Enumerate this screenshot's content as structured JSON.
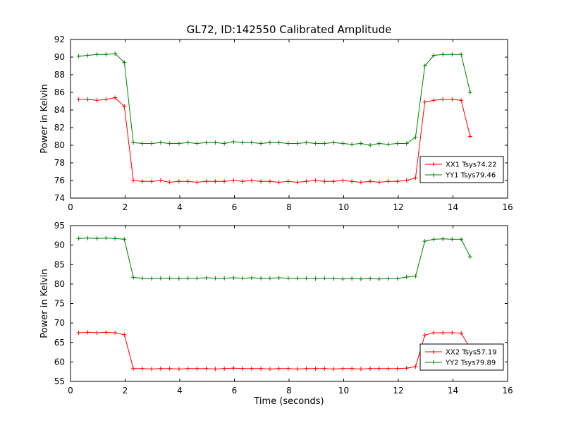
{
  "figure_title": "GL72, ID:142550 Calibrated Amplitude",
  "colors": {
    "red": "#ff0000",
    "green": "#008000",
    "axes": "#000000",
    "background": "#ffffff"
  },
  "chart_data": [
    {
      "type": "line",
      "title": "GL72, ID:142550 Calibrated Amplitude",
      "xlabel": "",
      "ylabel": "Power in Kelvin",
      "xlim": [
        0,
        16
      ],
      "ylim": [
        74,
        92
      ],
      "xticks": [
        0,
        2,
        4,
        6,
        8,
        10,
        12,
        14,
        16
      ],
      "yticks": [
        74,
        76,
        78,
        80,
        82,
        84,
        86,
        88,
        90,
        92
      ],
      "grid": false,
      "legend_position": "lower right",
      "x": [
        0.3,
        0.63,
        0.97,
        1.3,
        1.63,
        1.97,
        2.3,
        2.63,
        2.97,
        3.3,
        3.63,
        3.97,
        4.3,
        4.63,
        4.97,
        5.3,
        5.63,
        5.97,
        6.3,
        6.63,
        6.97,
        7.3,
        7.63,
        7.97,
        8.3,
        8.63,
        8.97,
        9.3,
        9.63,
        9.97,
        10.3,
        10.63,
        10.97,
        11.3,
        11.63,
        11.97,
        12.3,
        12.63,
        12.97,
        13.3,
        13.63,
        13.97,
        14.3,
        14.63
      ],
      "series": [
        {
          "name": "XX1 Tsys74.22",
          "color": "#ff0000",
          "marker": "+",
          "y": [
            85.2,
            85.2,
            85.1,
            85.2,
            85.4,
            84.4,
            76.0,
            75.9,
            75.9,
            76.0,
            75.8,
            75.9,
            75.9,
            75.8,
            75.9,
            75.9,
            75.9,
            76.0,
            75.9,
            76.0,
            75.9,
            75.9,
            75.8,
            75.9,
            75.8,
            75.9,
            76.0,
            75.9,
            75.9,
            76.0,
            75.9,
            75.8,
            75.9,
            75.8,
            75.9,
            75.9,
            76.0,
            76.3,
            84.9,
            85.1,
            85.2,
            85.2,
            85.1,
            81.0
          ]
        },
        {
          "name": "YY1 Tsys79.46",
          "color": "#008000",
          "marker": "+",
          "y": [
            90.1,
            90.2,
            90.3,
            90.3,
            90.4,
            89.4,
            80.3,
            80.2,
            80.2,
            80.3,
            80.2,
            80.2,
            80.3,
            80.2,
            80.3,
            80.3,
            80.2,
            80.4,
            80.3,
            80.3,
            80.2,
            80.3,
            80.3,
            80.2,
            80.2,
            80.3,
            80.2,
            80.2,
            80.3,
            80.2,
            80.1,
            80.2,
            80.0,
            80.2,
            80.1,
            80.2,
            80.2,
            80.9,
            89.0,
            90.2,
            90.3,
            90.3,
            90.3,
            86.0
          ]
        }
      ]
    },
    {
      "type": "line",
      "title": "",
      "xlabel": "Time (seconds)",
      "ylabel": "Power in Kelvin",
      "xlim": [
        0,
        16
      ],
      "ylim": [
        55,
        95
      ],
      "xticks": [
        0,
        2,
        4,
        6,
        8,
        10,
        12,
        14,
        16
      ],
      "yticks": [
        55,
        60,
        65,
        70,
        75,
        80,
        85,
        90,
        95
      ],
      "grid": false,
      "legend_position": "lower right",
      "x": [
        0.3,
        0.63,
        0.97,
        1.3,
        1.63,
        1.97,
        2.3,
        2.63,
        2.97,
        3.3,
        3.63,
        3.97,
        4.3,
        4.63,
        4.97,
        5.3,
        5.63,
        5.97,
        6.3,
        6.63,
        6.97,
        7.3,
        7.63,
        7.97,
        8.3,
        8.63,
        8.97,
        9.3,
        9.63,
        9.97,
        10.3,
        10.63,
        10.97,
        11.3,
        11.63,
        11.97,
        12.3,
        12.63,
        12.97,
        13.3,
        13.63,
        13.97,
        14.3,
        14.63
      ],
      "series": [
        {
          "name": "XX2 Tsys57.19",
          "color": "#ff0000",
          "marker": "+",
          "y": [
            67.5,
            67.6,
            67.5,
            67.6,
            67.5,
            67.0,
            58.3,
            58.3,
            58.2,
            58.3,
            58.3,
            58.2,
            58.3,
            58.3,
            58.3,
            58.2,
            58.3,
            58.4,
            58.3,
            58.3,
            58.3,
            58.2,
            58.3,
            58.3,
            58.2,
            58.3,
            58.3,
            58.3,
            58.2,
            58.3,
            58.3,
            58.2,
            58.3,
            58.3,
            58.3,
            58.3,
            58.4,
            58.8,
            66.9,
            67.5,
            67.5,
            67.5,
            67.4,
            63.5
          ]
        },
        {
          "name": "YY2 Tsys79.89",
          "color": "#008000",
          "marker": "+",
          "y": [
            91.7,
            91.8,
            91.7,
            91.8,
            91.7,
            91.5,
            81.7,
            81.5,
            81.4,
            81.5,
            81.5,
            81.4,
            81.5,
            81.5,
            81.6,
            81.5,
            81.5,
            81.6,
            81.5,
            81.6,
            81.5,
            81.5,
            81.6,
            81.5,
            81.5,
            81.5,
            81.4,
            81.5,
            81.4,
            81.3,
            81.4,
            81.3,
            81.4,
            81.3,
            81.4,
            81.4,
            81.8,
            82.0,
            91.0,
            91.5,
            91.6,
            91.5,
            91.5,
            87.0
          ]
        }
      ]
    }
  ]
}
